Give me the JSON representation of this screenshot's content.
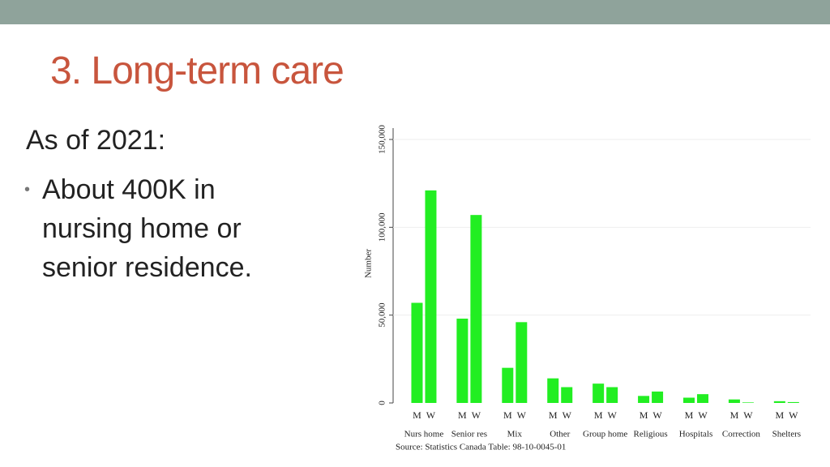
{
  "header": {
    "title": "3. Long-term care"
  },
  "body": {
    "intro": "As of 2021:",
    "bullet": [
      "About 400K in",
      "nursing home or",
      "senior residence."
    ]
  },
  "chart_data": {
    "type": "bar",
    "ylabel": "Number",
    "source": "Source: Statistics Canada Table: 98-10-0045-01",
    "categories": [
      "Nurs home",
      "Senior res",
      "Mix",
      "Other",
      "Group home",
      "Religious",
      "Hospitals",
      "Correction",
      "Shelters"
    ],
    "series": [
      {
        "name": "M",
        "color": "#22ee22",
        "values": [
          57000,
          48000,
          20000,
          14000,
          11000,
          4000,
          3000,
          2000,
          1000
        ]
      },
      {
        "name": "W",
        "color": "#22ee22",
        "values": [
          121000,
          107000,
          46000,
          9000,
          9000,
          6500,
          5000,
          300,
          500
        ]
      }
    ],
    "ylim": [
      0,
      150000
    ],
    "yticks": [
      0,
      {
        "value": 50000,
        "label": "50,000"
      },
      {
        "value": 100000,
        "label": "100,000"
      },
      {
        "value": 150000,
        "label": "150,000"
      }
    ],
    "grid": true
  }
}
